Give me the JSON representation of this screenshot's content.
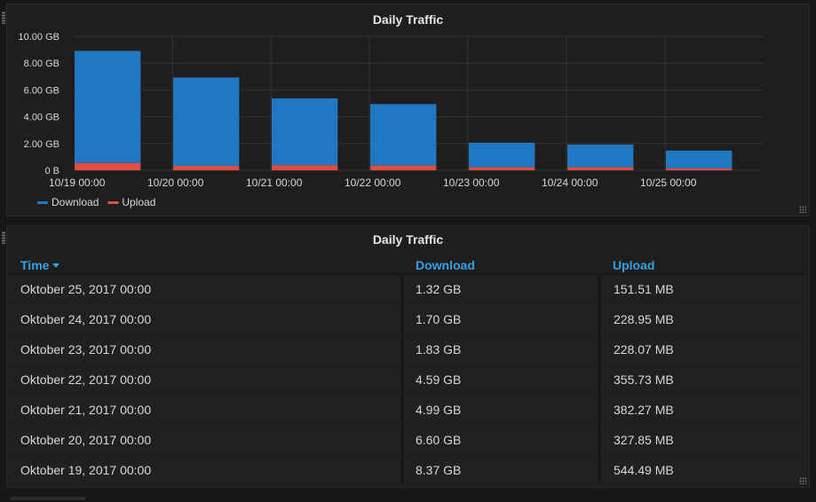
{
  "colors": {
    "download": "#1f78c1",
    "upload": "#e24d42",
    "grid": "#333333",
    "axis_text": "#d8d9da",
    "header_text": "#33a2e5"
  },
  "chart_panel": {
    "title": "Daily Traffic"
  },
  "chart_data": {
    "type": "bar",
    "stacked": true,
    "title": "Daily Traffic",
    "categories": [
      "10/19 00:00",
      "10/20 00:00",
      "10/21 00:00",
      "10/22 00:00",
      "10/23 00:00",
      "10/24 00:00",
      "10/25 00:00"
    ],
    "series": [
      {
        "name": "Download",
        "color": "#1f78c1",
        "values": [
          8.37,
          6.6,
          4.99,
          4.59,
          1.83,
          1.7,
          1.32
        ]
      },
      {
        "name": "Upload",
        "color": "#e24d42",
        "values": [
          0.544,
          0.328,
          0.382,
          0.356,
          0.228,
          0.229,
          0.152
        ]
      }
    ],
    "yticks": [
      "0 B",
      "2.00 GB",
      "4.00 GB",
      "6.00 GB",
      "8.00 GB",
      "10.00 GB"
    ],
    "ylim": [
      0,
      10
    ],
    "yunit": "GB",
    "grid": true,
    "legend_position": "bottom-left"
  },
  "legend": [
    {
      "label": "Download",
      "color": "#1f78c1"
    },
    {
      "label": "Upload",
      "color": "#e24d42"
    }
  ],
  "table_panel": {
    "title": "Daily Traffic",
    "columns": {
      "time": "Time",
      "download": "Download",
      "upload": "Upload"
    },
    "rows": [
      {
        "time": "Oktober 25, 2017 00:00",
        "download": "1.32 GB",
        "upload": "151.51 MB"
      },
      {
        "time": "Oktober 24, 2017 00:00",
        "download": "1.70 GB",
        "upload": "228.95 MB"
      },
      {
        "time": "Oktober 23, 2017 00:00",
        "download": "1.83 GB",
        "upload": "228.07 MB"
      },
      {
        "time": "Oktober 22, 2017 00:00",
        "download": "4.59 GB",
        "upload": "355.73 MB"
      },
      {
        "time": "Oktober 21, 2017 00:00",
        "download": "4.99 GB",
        "upload": "382.27 MB"
      },
      {
        "time": "Oktober 20, 2017 00:00",
        "download": "6.60 GB",
        "upload": "327.85 MB"
      },
      {
        "time": "Oktober 19, 2017 00:00",
        "download": "8.37 GB",
        "upload": "544.49 MB"
      }
    ]
  }
}
